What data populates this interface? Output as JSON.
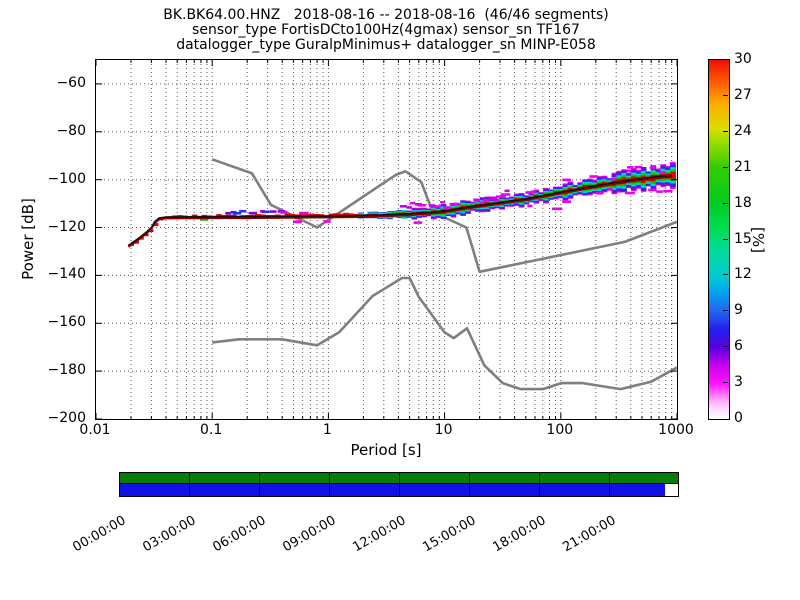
{
  "title": {
    "line1": "BK.BK64.00.HNZ   2018-08-16 -- 2018-08-16  (46/46 segments)",
    "line2": "sensor_type FortisDCto100Hz(4gmax) sensor_sn TF167",
    "line3": "datalogger_type GuralpMinimus+ datalogger_sn MINP-E058"
  },
  "chart_data": {
    "type": "heatmap",
    "description": "Probabilistic power spectral density (PPSD) of seismic channel BK.BK64.00.HNZ with Peterson new high/low noise model reference curves",
    "xlabel": "Period [s]",
    "ylabel": "Power [dB]",
    "x_scale": "log",
    "xlim": [
      0.01,
      1000
    ],
    "ylim": [
      -200,
      -50
    ],
    "grid": true,
    "x_tick_labels": [
      "0.01",
      "0.1",
      "1",
      "10",
      "100",
      "1000"
    ],
    "y_tick_values": [
      -60,
      -80,
      -100,
      -120,
      -140,
      -160,
      -180,
      -200
    ],
    "colorbar": {
      "label": "[%]",
      "min": 0,
      "max": 30,
      "tick_step": 3,
      "gradient_stops": [
        [
          0.0,
          "#ffffff"
        ],
        [
          0.04,
          "#ffc8ff"
        ],
        [
          0.1,
          "#ff10ff"
        ],
        [
          0.15,
          "#c800f0"
        ],
        [
          0.2,
          "#5500dd"
        ],
        [
          0.25,
          "#2222ee"
        ],
        [
          0.3,
          "#2266ee"
        ],
        [
          0.36,
          "#00aaee"
        ],
        [
          0.4,
          "#00cccc"
        ],
        [
          0.47,
          "#00dd99"
        ],
        [
          0.53,
          "#00dd55"
        ],
        [
          0.6,
          "#00cc22"
        ],
        [
          0.7,
          "#33cc00"
        ],
        [
          0.77,
          "#99dd00"
        ],
        [
          0.81,
          "#dddd00"
        ],
        [
          0.88,
          "#ffaa00"
        ],
        [
          0.93,
          "#ff6600"
        ],
        [
          1.0,
          "#ee1100"
        ]
      ]
    },
    "psd_mode_curve": {
      "comment": "highest-probability PSD level vs period, read from plot",
      "points": [
        [
          0.019,
          -127.5
        ],
        [
          0.021,
          -126.0
        ],
        [
          0.024,
          -124.0
        ],
        [
          0.027,
          -122.0
        ],
        [
          0.03,
          -120.0
        ],
        [
          0.032,
          -117.5
        ],
        [
          0.035,
          -116.0
        ],
        [
          0.04,
          -115.6
        ],
        [
          0.08,
          -115.5
        ],
        [
          0.3,
          -115.4
        ],
        [
          1.0,
          -115.2
        ],
        [
          2.0,
          -115.0
        ],
        [
          3.0,
          -114.7
        ],
        [
          5.0,
          -114.2
        ],
        [
          8.0,
          -113.5
        ],
        [
          10,
          -113.0
        ],
        [
          15,
          -111.6
        ],
        [
          20,
          -110.7
        ],
        [
          30,
          -109.5
        ],
        [
          50,
          -108.0
        ],
        [
          70,
          -106.6
        ],
        [
          100,
          -105.2
        ],
        [
          150,
          -103.6
        ],
        [
          200,
          -102.5
        ],
        [
          300,
          -101.0
        ],
        [
          500,
          -99.5
        ],
        [
          700,
          -98.6
        ],
        [
          900,
          -98.2
        ]
      ]
    },
    "noise_models": {
      "color": "#7f7f7f",
      "line_width": 2.6,
      "nhnm": [
        [
          0.1,
          -91.5
        ],
        [
          0.22,
          -97.4
        ],
        [
          0.32,
          -110.5
        ],
        [
          0.8,
          -120.0
        ],
        [
          3.8,
          -98.0
        ],
        [
          4.6,
          -96.5
        ],
        [
          6.3,
          -101.0
        ],
        [
          7.9,
          -113.5
        ],
        [
          15.4,
          -120.0
        ],
        [
          20.0,
          -138.5
        ],
        [
          354.8,
          -126.0
        ],
        [
          1000,
          -117.6
        ]
      ],
      "nlnm": [
        [
          0.1,
          -168.0
        ],
        [
          0.17,
          -166.7
        ],
        [
          0.4,
          -166.7
        ],
        [
          0.8,
          -169.2
        ],
        [
          1.24,
          -163.7
        ],
        [
          2.4,
          -148.6
        ],
        [
          4.3,
          -141.1
        ],
        [
          5.0,
          -141.1
        ],
        [
          6.0,
          -149.0
        ],
        [
          10.0,
          -163.8
        ],
        [
          12.0,
          -166.2
        ],
        [
          15.6,
          -162.1
        ],
        [
          21.9,
          -177.5
        ],
        [
          31.6,
          -185.0
        ],
        [
          45.0,
          -187.5
        ],
        [
          70.0,
          -187.5
        ],
        [
          101.0,
          -185.0
        ],
        [
          154.0,
          -185.0
        ],
        [
          328.0,
          -187.5
        ],
        [
          600.0,
          -184.4
        ],
        [
          1000,
          -178.5
        ]
      ]
    },
    "histogram_band": {
      "seed": 1337,
      "bin_step_decades": 0.042,
      "period_range": [
        0.019,
        880
      ],
      "spread_db": [
        [
          0.019,
          0.5
        ],
        [
          0.04,
          0.6
        ],
        [
          0.3,
          0.8
        ],
        [
          1.0,
          0.8
        ],
        [
          2.0,
          1.0
        ],
        [
          3.0,
          1.5
        ],
        [
          5.0,
          1.9
        ],
        [
          8.0,
          2.4
        ],
        [
          20,
          2.6
        ],
        [
          50,
          2.4
        ],
        [
          100,
          2.8
        ],
        [
          200,
          3.2
        ],
        [
          400,
          4.0
        ],
        [
          900,
          4.5
        ]
      ],
      "layer_colors": [
        "#e00000",
        "#00d000",
        "#00d8d8",
        "#2230ee",
        "#8a00e0",
        "#ea00ea"
      ],
      "layer_fractions": [
        0.26,
        0.44,
        0.6,
        0.76,
        0.88,
        1.0
      ],
      "mode_line_color": "#111111",
      "mode_underline_color": "#8b0000",
      "scatter": [
        {
          "p_min": 0.12,
          "p_max": 0.45,
          "off_min": 1.5,
          "off_max": 3.0,
          "prob": 0.55,
          "colors": [
            "#8a00e0",
            "#2230ee",
            "#ea00ea"
          ]
        },
        {
          "p_min": 0.45,
          "p_max": 1.2,
          "off_min": 1.0,
          "off_max": 2.5,
          "prob": 0.35,
          "colors": [
            "#ea00ea",
            "#8a00e0"
          ]
        },
        {
          "p_min": 0.5,
          "p_max": 1.2,
          "off_min": -2.2,
          "off_max": -1.5,
          "prob": 0.15,
          "colors": [
            "#ea00ea"
          ]
        },
        {
          "p_min": 4.0,
          "p_max": 40,
          "off_min": 1.5,
          "off_max": 5.0,
          "prob": 0.65,
          "colors": [
            "#ea00ea",
            "#cc00ee"
          ]
        },
        {
          "p_min": 4.0,
          "p_max": 40,
          "off_min": -3.5,
          "off_max": -2.5,
          "prob": 0.18,
          "colors": [
            "#ea00ea"
          ]
        },
        {
          "p_min": 50,
          "p_max": 880,
          "off_min": 2.0,
          "off_max": 6.0,
          "prob": 0.35,
          "colors": [
            "#ea00ea"
          ]
        },
        {
          "p_min": 50,
          "p_max": 880,
          "off_min": -6.0,
          "off_max": -2.0,
          "prob": 0.35,
          "colors": [
            "#ea00ea"
          ]
        },
        {
          "p_min": 0.04,
          "p_max": 0.1,
          "off_min": -0.8,
          "off_max": 0.8,
          "prob": 0.12,
          "colors": [
            "#00d000",
            "#ea00ea"
          ]
        }
      ]
    }
  },
  "timeline": {
    "hours_total": 24,
    "tick_every_hours": 3,
    "tick_labels": [
      "00:00:00",
      "03:00:00",
      "06:00:00",
      "09:00:00",
      "12:00:00",
      "15:00:00",
      "18:00:00",
      "21:00:00"
    ],
    "rows": [
      {
        "name": "processed-segments-bar",
        "color": "#067d06",
        "coverage": [
          [
            0,
            1.0
          ]
        ]
      },
      {
        "name": "data-availability-bar",
        "color": "#1212e8",
        "coverage": [
          [
            0,
            0.977
          ]
        ]
      }
    ]
  }
}
